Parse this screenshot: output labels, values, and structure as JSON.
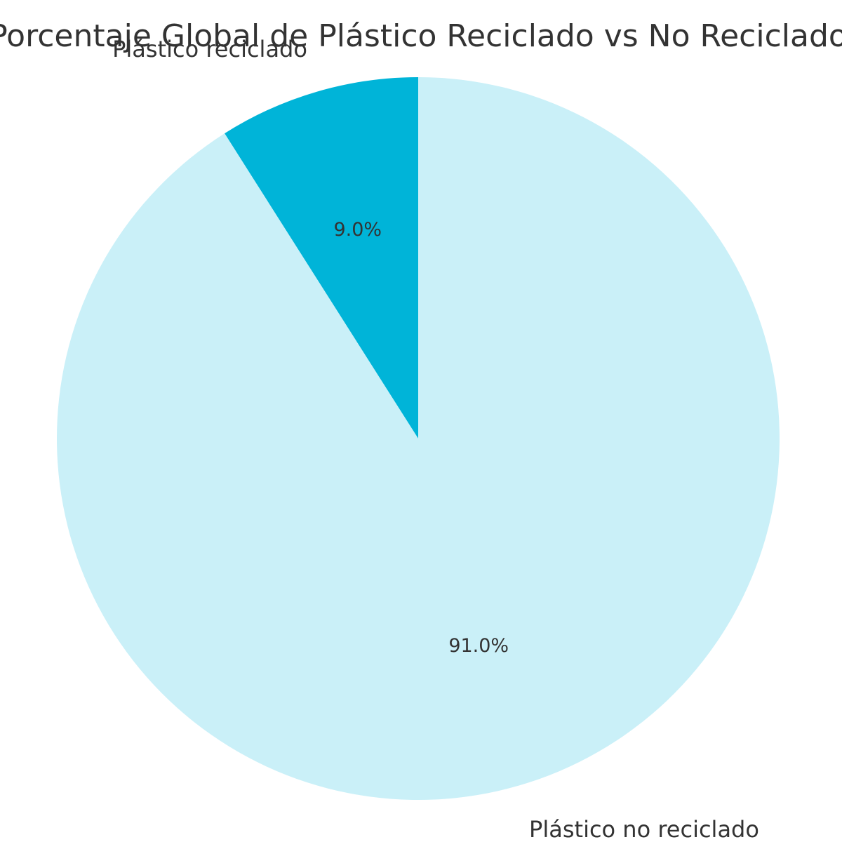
{
  "chart_data": {
    "type": "pie",
    "title": "Porcentaje Global de Plástico Reciclado vs No Reciclado",
    "labels": [
      "Plástico reciclado",
      "Plástico no reciclado"
    ],
    "values": [
      9.0,
      91.0
    ],
    "percent_labels": [
      "9.0%",
      "91.0%"
    ],
    "colors": [
      "#00b4d8",
      "#caf0f8"
    ],
    "start_angle_deg": 90,
    "direction": "counterclockwise",
    "legend": "none"
  }
}
